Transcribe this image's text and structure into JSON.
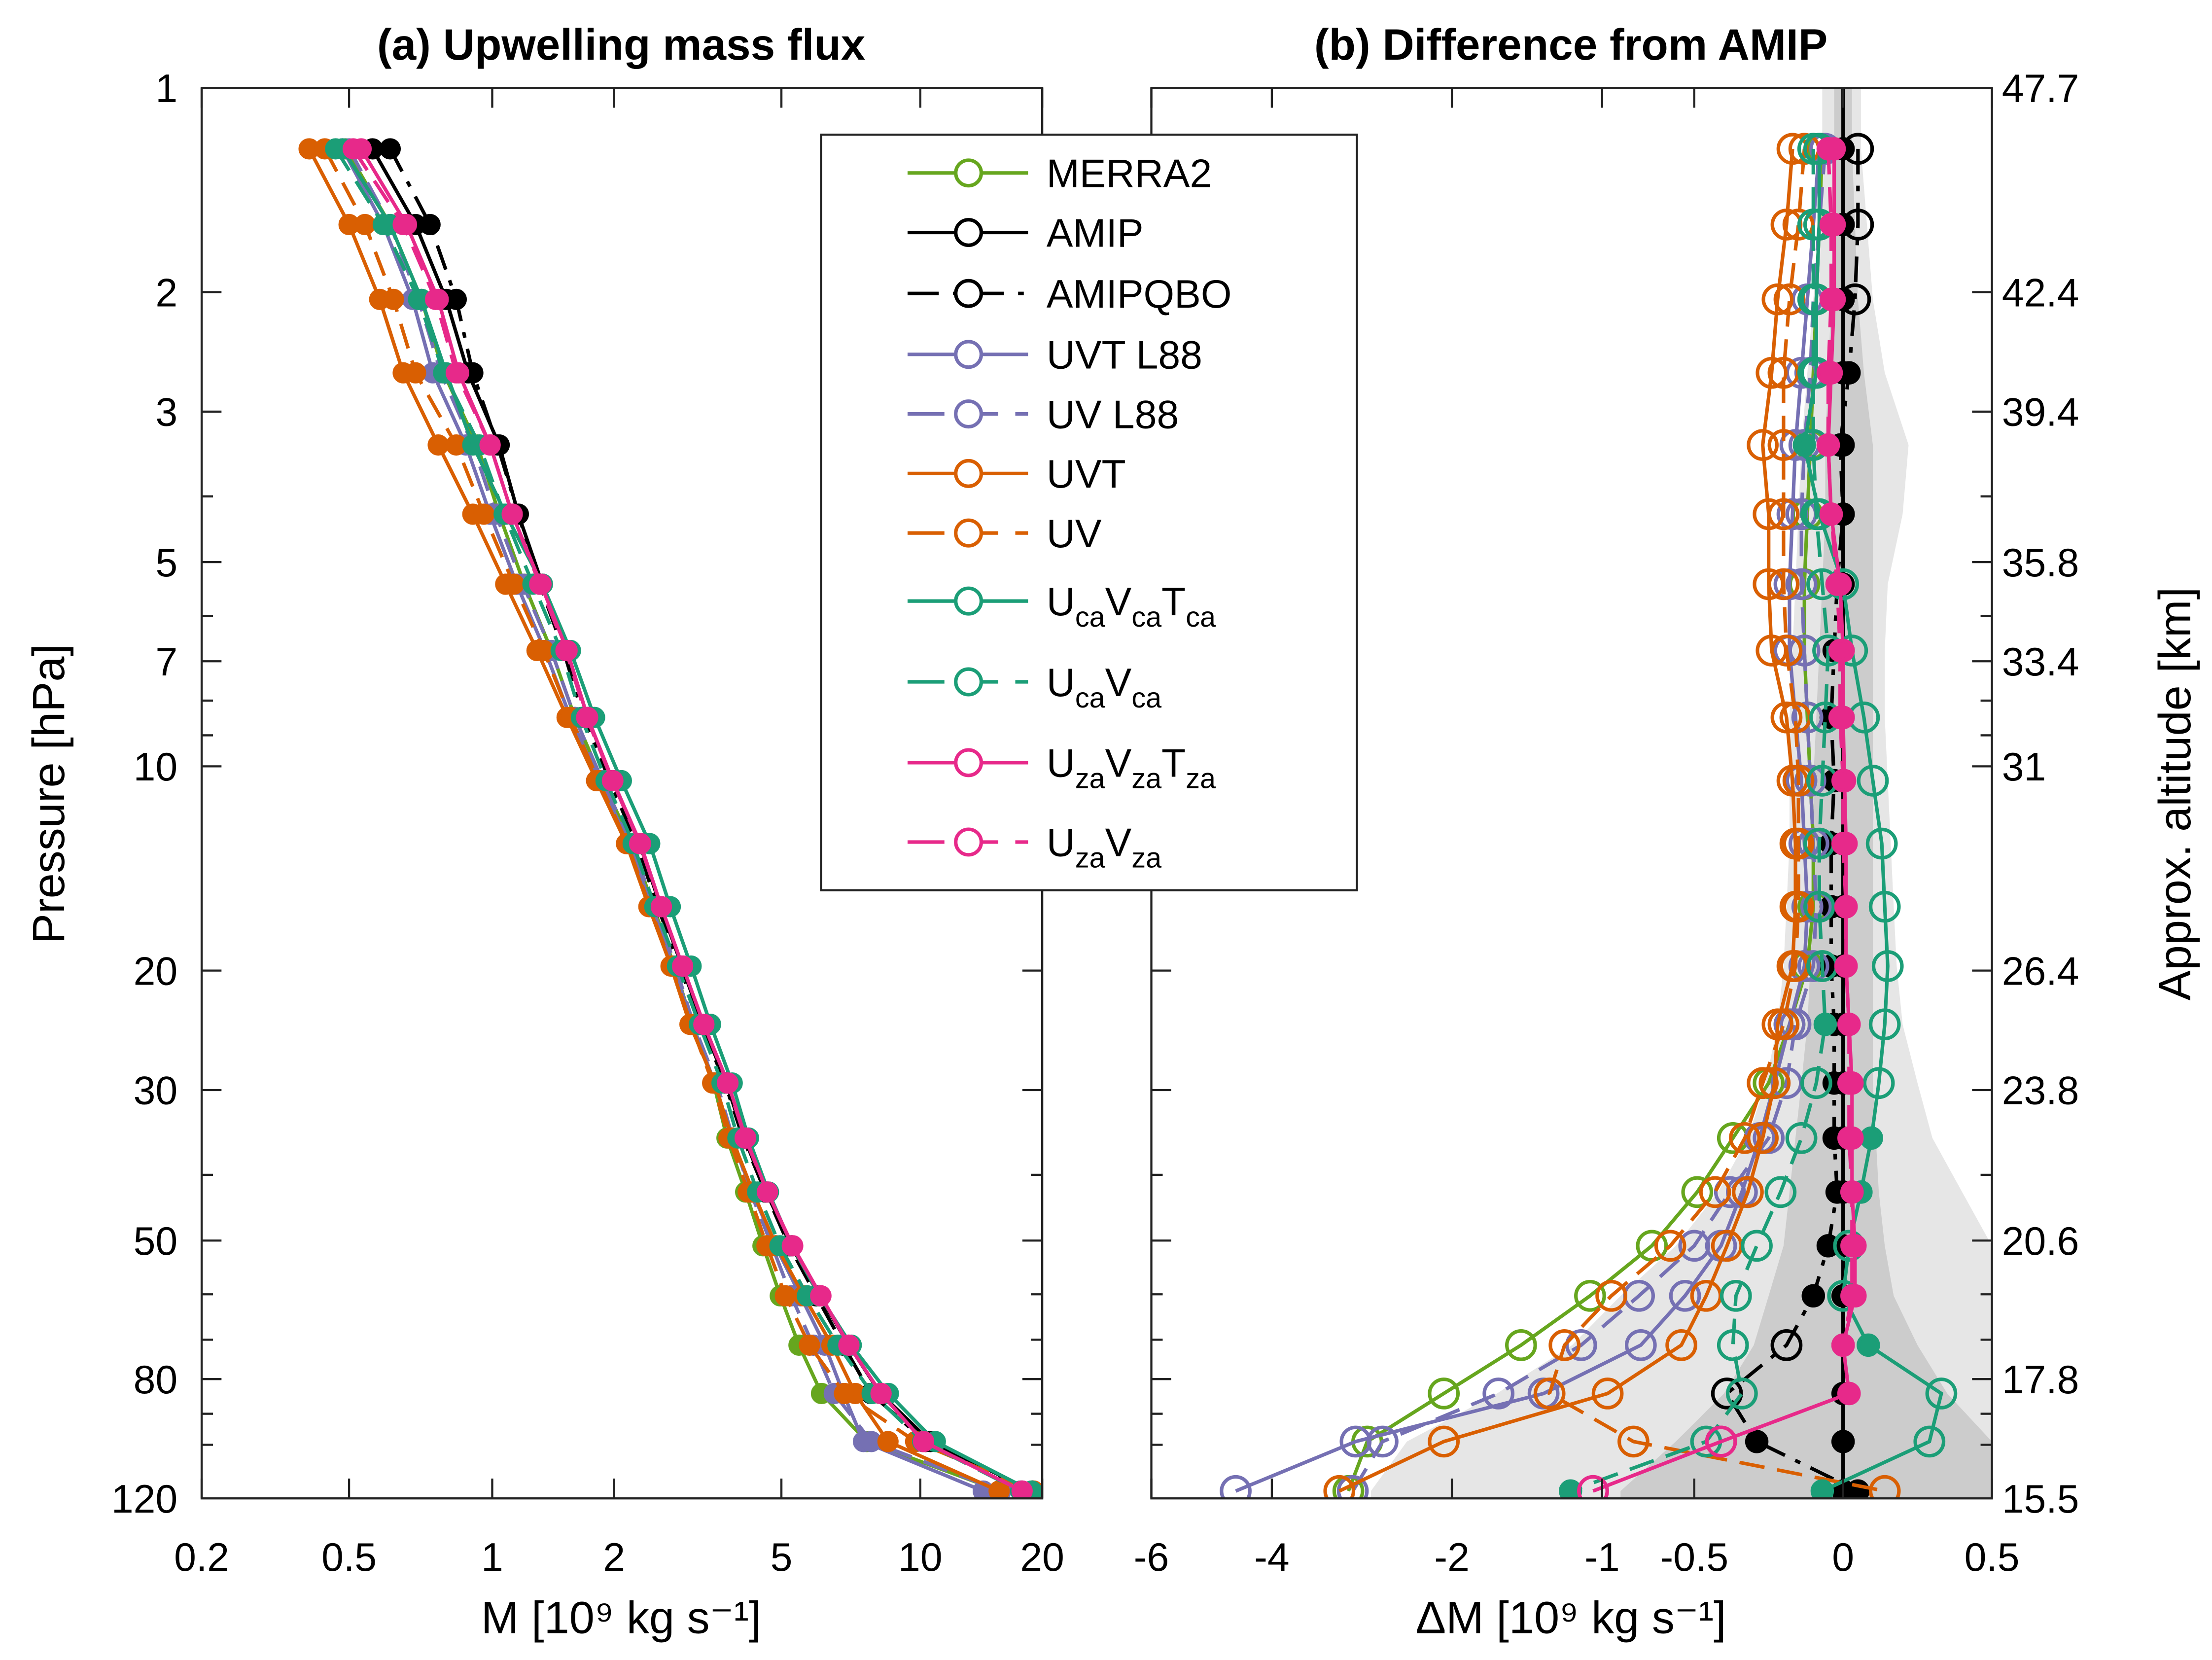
{
  "chart_data": [
    {
      "type": "line",
      "title": "(a) Upwelling mass flux",
      "xlabel": "M [10⁹ kg s⁻¹]",
      "ylabel": "Pressure [hPa]",
      "xscale": "log",
      "yscale": "log",
      "y_reversed": true,
      "xlim": [
        0.2,
        20
      ],
      "ylim": [
        1,
        120
      ],
      "xticks": [
        0.2,
        0.5,
        1,
        2,
        5,
        10,
        20
      ],
      "xtick_labels": [
        "0.2",
        "0.5",
        "1",
        "2",
        "5",
        "10",
        "20"
      ],
      "yticks": [
        1,
        2,
        3,
        5,
        7,
        10,
        20,
        30,
        50,
        80,
        120
      ],
      "ytick_labels": [
        "1",
        "2",
        "3",
        "5",
        "7",
        "10",
        "20",
        "30",
        "50",
        "80",
        "120"
      ],
      "markers": "filled circles",
      "note_values": "M = AMIP + difference shown in panel (b)"
    },
    {
      "type": "line",
      "title": "(b) Difference from AMIP",
      "xlabel": "ΔM [10⁹ kg s⁻¹]",
      "ylabel_right": "Approx. altitude [km]",
      "yscale": "log",
      "y_reversed": true,
      "xlim": [
        -6,
        0.5
      ],
      "xticks": [
        -6,
        -4,
        -2,
        -1,
        -0.5,
        0,
        0.5
      ],
      "xtick_labels": [
        "-6",
        "-4",
        "-2",
        "-1",
        "-0.5",
        "0",
        "0.5"
      ],
      "right_yticks_pressure": [
        1,
        2,
        3,
        5,
        7,
        10,
        20,
        30,
        50,
        80,
        120
      ],
      "right_ytick_labels": [
        "47.7",
        "42.4",
        "39.4",
        "35.8",
        "33.4",
        "31",
        "26.4",
        "23.8",
        "20.6",
        "17.8",
        "15.5"
      ],
      "markers": "open circles; filled where not significant",
      "bands": {
        "dark_color": "#cccccc",
        "light_color": "#e6e6e6",
        "dark_lo": [
          -0.03,
          -0.03,
          -0.04,
          -0.05,
          -0.06,
          -0.06,
          -0.07,
          -0.08,
          -0.09,
          -0.1,
          -0.1,
          -0.1,
          -0.11,
          -0.12,
          -0.14,
          -0.16,
          -0.18,
          -0.2,
          -0.25,
          -0.3,
          -0.4,
          -0.6,
          -0.9
        ],
        "dark_hi": [
          0.03,
          0.04,
          0.05,
          0.07,
          0.1,
          0.1,
          0.1,
          0.1,
          0.1,
          0.1,
          0.1,
          0.1,
          0.1,
          0.1,
          0.1,
          0.11,
          0.12,
          0.14,
          0.17,
          0.25,
          0.35,
          0.5,
          0.5
        ],
        "light_lo": [
          -0.07,
          -0.08,
          -0.1,
          -0.12,
          -0.14,
          -0.15,
          -0.16,
          -0.17,
          -0.18,
          -0.18,
          -0.18,
          -0.19,
          -0.2,
          -0.22,
          -0.26,
          -0.32,
          -0.42,
          -0.6,
          -0.9,
          -1.2,
          -1.7,
          -2.5,
          -2.9
        ],
        "light_hi": [
          0.06,
          0.08,
          0.1,
          0.14,
          0.22,
          0.2,
          0.15,
          0.14,
          0.14,
          0.15,
          0.16,
          0.17,
          0.18,
          0.2,
          0.25,
          0.3,
          0.4,
          0.5,
          0.5,
          0.5,
          0.5,
          0.5,
          0.5
        ]
      }
    }
  ],
  "pressure_levels": [
    1.23,
    1.59,
    2.05,
    2.63,
    3.36,
    4.25,
    5.39,
    6.75,
    8.47,
    10.5,
    13.0,
    16.1,
    19.7,
    24.0,
    29.3,
    35.3,
    42.4,
    50.9,
    60.3,
    71.3,
    84.0,
    98.9,
    117
  ],
  "amip_M": [
    0.56,
    0.69,
    0.8,
    0.89,
    1.04,
    1.16,
    1.33,
    1.53,
    1.72,
    1.98,
    2.3,
    2.58,
    2.9,
    3.25,
    3.7,
    4.08,
    4.6,
    5.25,
    6.05,
    7.0,
    8.2,
    10.6,
    18.9
  ],
  "series": [
    {
      "name": "MERRA2",
      "label_parts": [
        {
          "t": "MERRA2",
          "sub": ""
        }
      ],
      "color": "#66a61e",
      "dash": "solid",
      "filled_levels_b": [],
      "diff": [
        -0.07,
        -0.08,
        -0.09,
        -0.1,
        -0.11,
        -0.12,
        -0.13,
        -0.13,
        -0.12,
        -0.11,
        -0.1,
        -0.1,
        -0.12,
        -0.18,
        -0.25,
        -0.37,
        -0.49,
        -0.73,
        -1.08,
        -1.54,
        -2.09,
        -2.94,
        -3.15
      ]
    },
    {
      "name": "AMIP",
      "label_parts": [
        {
          "t": "AMIP",
          "sub": ""
        }
      ],
      "color": "#000000",
      "dash": "solid",
      "filled_levels_b": "all",
      "diff": [
        0,
        0,
        0,
        0,
        0,
        0,
        0,
        0,
        0,
        0,
        0,
        0,
        0,
        0,
        0,
        0,
        0,
        0,
        0,
        0,
        0,
        0,
        0
      ]
    },
    {
      "name": "AMIPQBO",
      "label_parts": [
        {
          "t": "AMIPQBO",
          "sub": ""
        }
      ],
      "color": "#000000",
      "dash": "dashdot",
      "filled_levels_b": [
        3,
        4,
        5,
        6,
        7,
        8,
        9,
        10,
        11,
        12,
        13,
        14,
        15,
        16,
        17,
        18,
        21,
        22
      ],
      "diff": [
        0.05,
        0.05,
        0.04,
        0.02,
        -0.01,
        0.0,
        -0.02,
        -0.03,
        -0.04,
        -0.03,
        -0.04,
        -0.04,
        -0.04,
        -0.03,
        -0.03,
        -0.03,
        -0.02,
        -0.05,
        -0.1,
        -0.19,
        -0.39,
        -0.29,
        0.05
      ]
    },
    {
      "name": "UVT L88",
      "label_parts": [
        {
          "t": "UVT L88",
          "sub": ""
        }
      ],
      "color": "#7570b3",
      "dash": "solid",
      "filled_levels_b": [],
      "diff": [
        -0.08,
        -0.1,
        -0.12,
        -0.14,
        -0.16,
        -0.17,
        -0.18,
        -0.18,
        -0.16,
        -0.14,
        -0.13,
        -0.12,
        -0.13,
        -0.18,
        -0.23,
        -0.28,
        -0.34,
        -0.41,
        -0.55,
        -0.79,
        -1.39,
        -3.07,
        -4.6
      ]
    },
    {
      "name": "UV L88",
      "label_parts": [
        {
          "t": "UV L88",
          "sub": ""
        }
      ],
      "color": "#7570b3",
      "dash": "dashed",
      "filled_levels_b": [],
      "diff": [
        -0.06,
        -0.08,
        -0.1,
        -0.11,
        -0.13,
        -0.14,
        -0.14,
        -0.13,
        -0.12,
        -0.11,
        -0.1,
        -0.09,
        -0.1,
        -0.16,
        -0.19,
        -0.25,
        -0.38,
        -0.5,
        -0.8,
        -1.14,
        -1.69,
        -2.77,
        -3.1
      ]
    },
    {
      "name": "UVT",
      "label_parts": [
        {
          "t": "UVT",
          "sub": ""
        }
      ],
      "color": "#d95f02",
      "dash": "solid",
      "filled_levels_b": [],
      "diff": [
        -0.17,
        -0.19,
        -0.22,
        -0.24,
        -0.27,
        -0.25,
        -0.25,
        -0.24,
        -0.19,
        -0.17,
        -0.16,
        -0.16,
        -0.17,
        -0.22,
        -0.23,
        -0.27,
        -0.32,
        -0.39,
        -0.46,
        -0.57,
        -0.97,
        -2.09,
        -3.25
      ]
    },
    {
      "name": "UV",
      "label_parts": [
        {
          "t": "UV",
          "sub": ""
        }
      ],
      "color": "#d95f02",
      "dash": "dashed",
      "filled_levels_b": [],
      "diff": [
        -0.13,
        -0.15,
        -0.18,
        -0.2,
        -0.2,
        -0.2,
        -0.2,
        -0.19,
        -0.16,
        -0.15,
        -0.15,
        -0.15,
        -0.16,
        -0.2,
        -0.27,
        -0.33,
        -0.43,
        -0.63,
        -0.95,
        -1.25,
        -1.35,
        -0.83,
        0.14
      ]
    },
    {
      "name": "UcaVcaTca",
      "label_parts": [
        {
          "t": "U",
          "sub": "ca"
        },
        {
          "t": "V",
          "sub": "ca"
        },
        {
          "t": "T",
          "sub": "ca"
        }
      ],
      "color": "#1b9e77",
      "dash": "solid",
      "filled_levels_b": [
        4,
        15,
        16,
        19,
        22
      ],
      "diff": [
        -0.08,
        -0.08,
        -0.09,
        -0.09,
        -0.13,
        -0.08,
        0.0,
        0.03,
        0.07,
        0.1,
        0.13,
        0.14,
        0.15,
        0.14,
        0.12,
        0.095,
        0.06,
        0.02,
        0.0,
        0.085,
        0.33,
        0.29,
        -0.07
      ]
    },
    {
      "name": "UcaVca",
      "label_parts": [
        {
          "t": "U",
          "sub": "ca"
        },
        {
          "t": "V",
          "sub": "ca"
        }
      ],
      "color": "#1b9e77",
      "dash": "dashed",
      "filled_levels_b": [
        13,
        22
      ],
      "diff": [
        -0.1,
        -0.1,
        -0.1,
        -0.1,
        -0.1,
        -0.09,
        -0.07,
        -0.05,
        -0.06,
        -0.07,
        -0.08,
        -0.08,
        -0.07,
        -0.06,
        -0.09,
        -0.14,
        -0.21,
        -0.29,
        -0.36,
        -0.37,
        -0.34,
        -0.46,
        -1.21
      ]
    },
    {
      "name": "UzaVzaTza",
      "label_parts": [
        {
          "t": "U",
          "sub": "za"
        },
        {
          "t": "V",
          "sub": "za"
        },
        {
          "t": "T",
          "sub": "za"
        }
      ],
      "color": "#e7298a",
      "dash": "solid",
      "filled_levels_b": [
        0,
        1,
        2,
        3,
        4,
        5,
        6,
        7,
        8,
        9,
        10,
        11,
        12,
        13,
        14,
        15,
        16,
        17,
        18,
        19,
        20
      ],
      "diff": [
        -0.03,
        -0.03,
        -0.03,
        -0.04,
        -0.05,
        -0.04,
        -0.01,
        0.0,
        0.0,
        0.005,
        0.01,
        0.01,
        0.01,
        0.02,
        0.03,
        0.03,
        0.03,
        0.04,
        0.04,
        0.0,
        0.02,
        -0.41,
        -1.06
      ]
    },
    {
      "name": "UzaVza",
      "label_parts": [
        {
          "t": "U",
          "sub": "za"
        },
        {
          "t": "V",
          "sub": "za"
        }
      ],
      "color": "#e7298a",
      "dash": "dashed",
      "filled_levels_b": [
        0,
        1,
        2,
        3,
        4,
        5,
        6,
        7,
        8,
        9,
        10,
        11,
        12,
        13,
        14,
        15,
        16,
        17,
        18,
        19,
        20
      ],
      "diff": [
        -0.05,
        -0.04,
        -0.04,
        -0.05,
        -0.05,
        -0.04,
        -0.02,
        -0.01,
        -0.01,
        0.0,
        0.0,
        0.01,
        0.01,
        0.02,
        0.02,
        0.02,
        0.03,
        0.03,
        0.03,
        0.0,
        0.02,
        -0.41,
        -1.06
      ]
    }
  ]
}
